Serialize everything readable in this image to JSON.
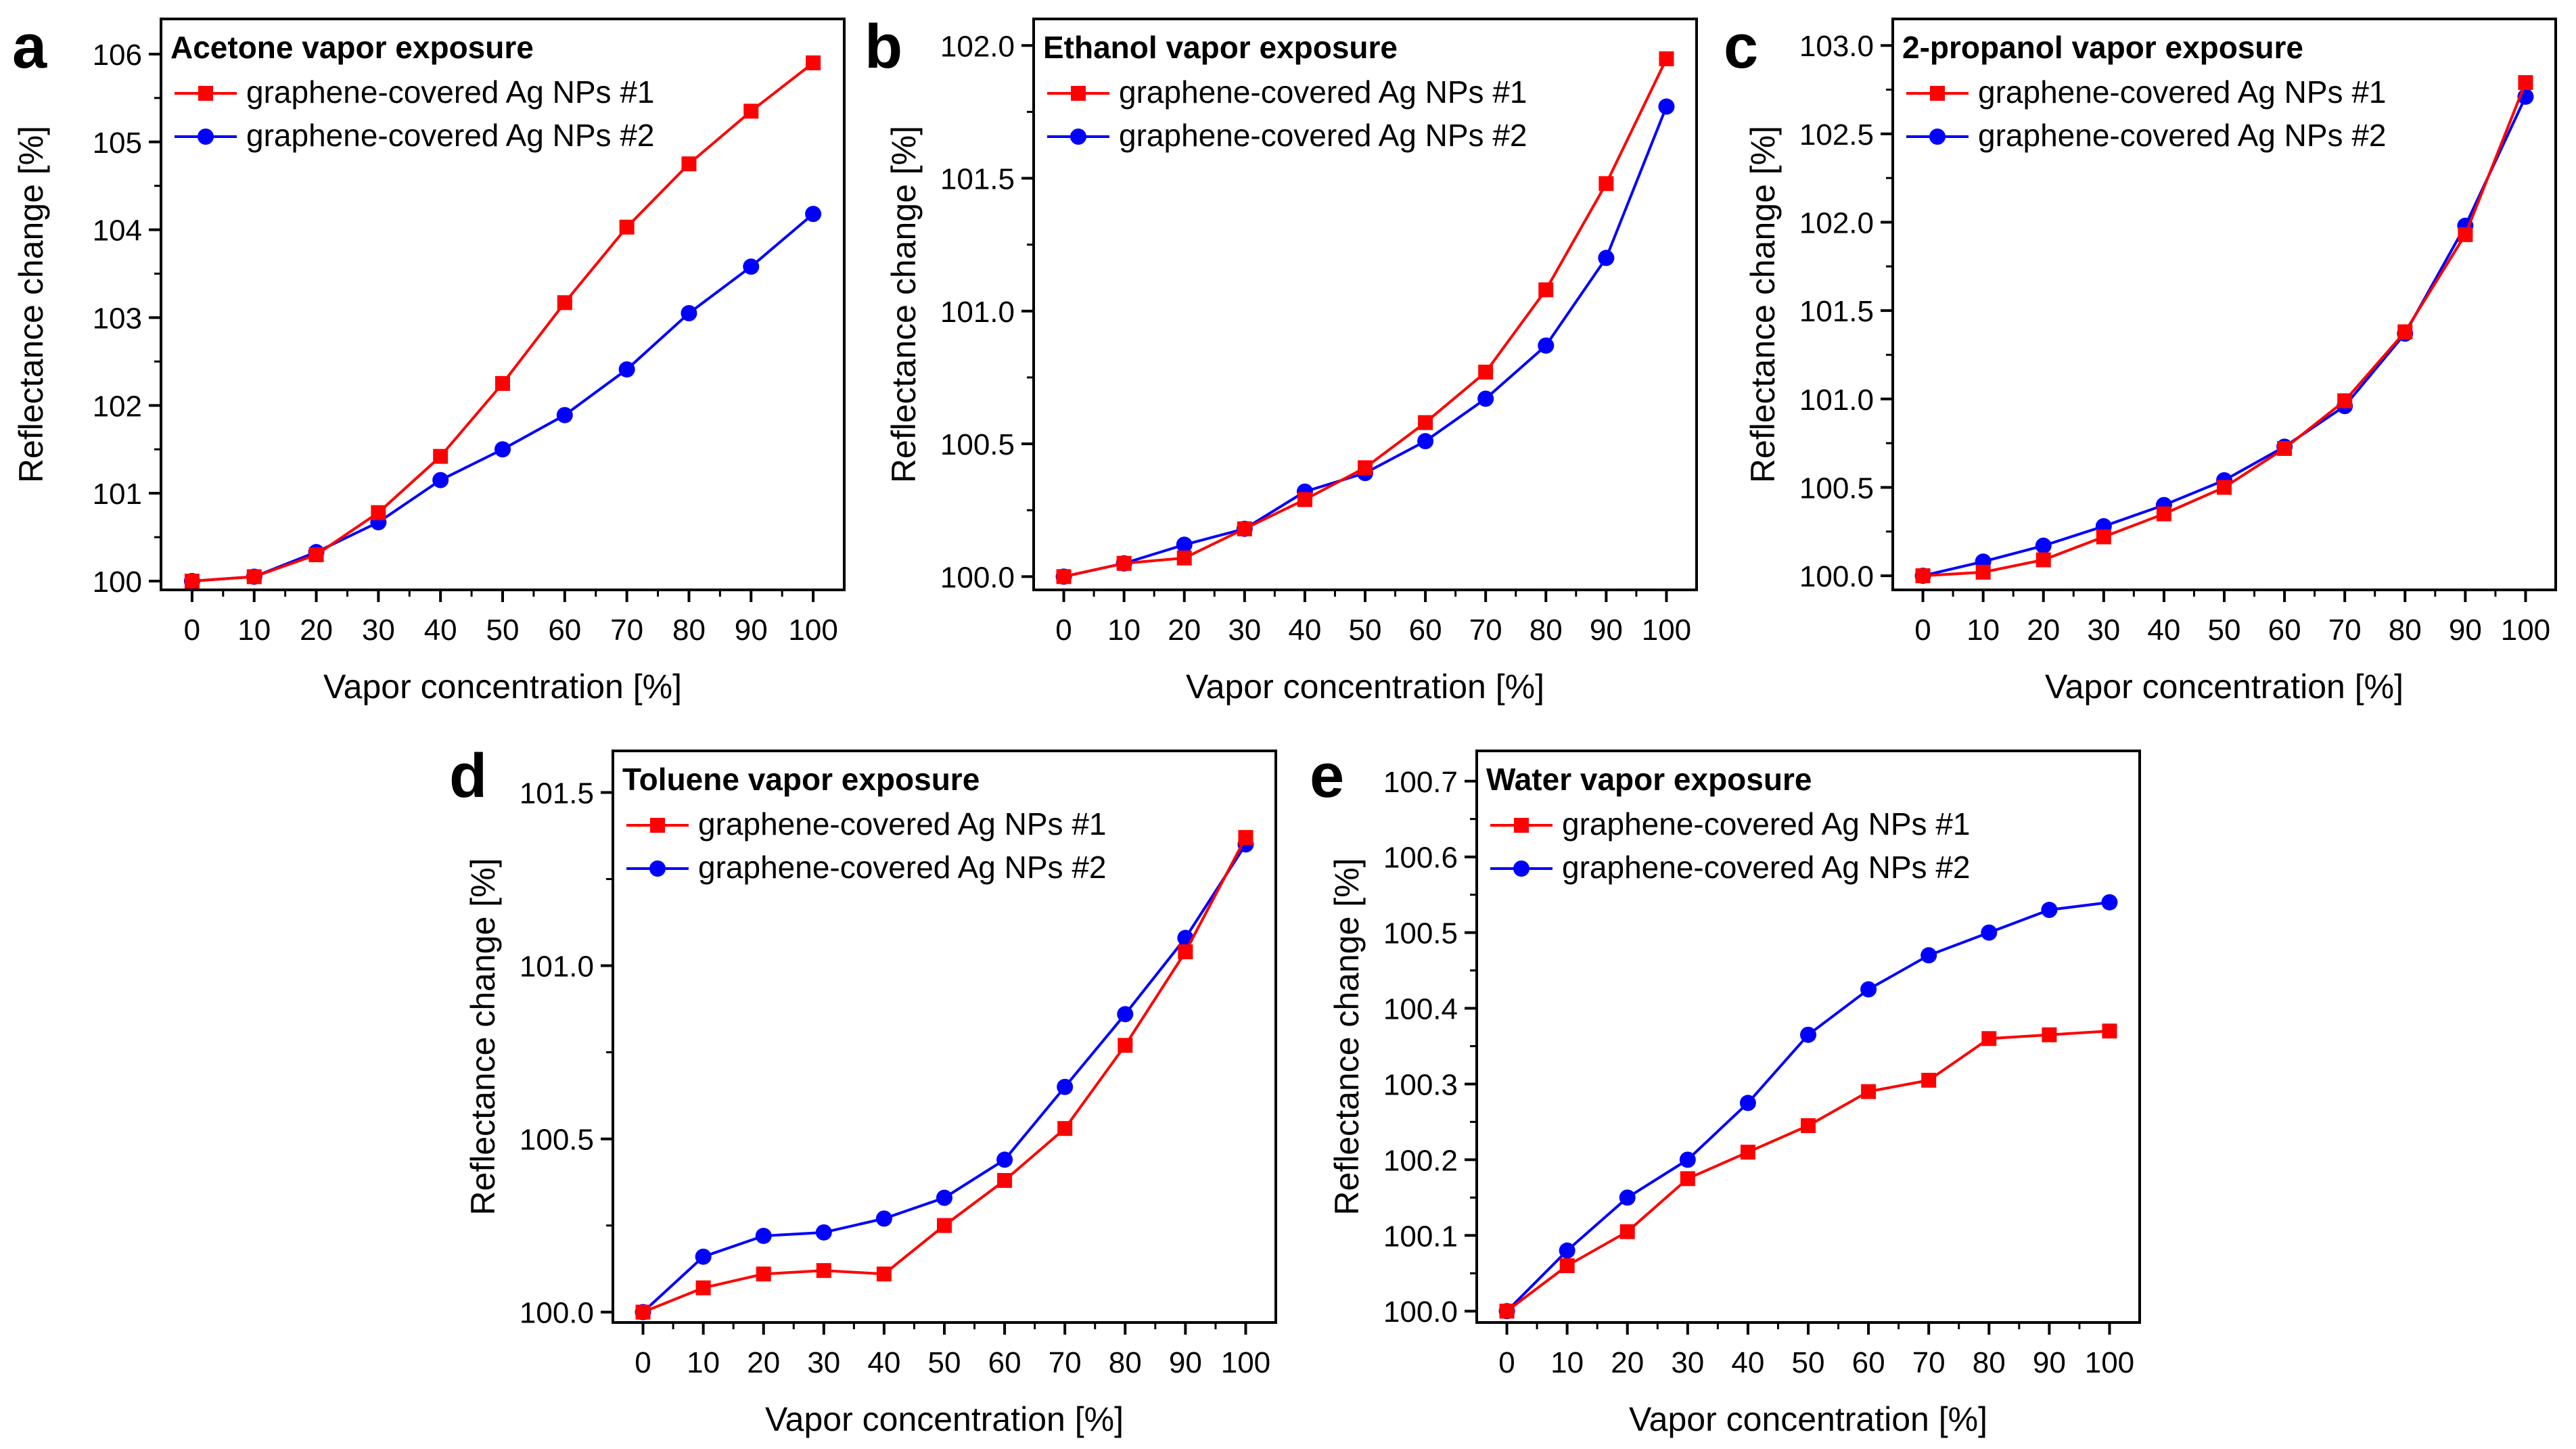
{
  "figure": {
    "legend_labels": [
      "graphene-covered Ag NPs #1",
      "graphene-covered Ag NPs #2"
    ],
    "series_colors": [
      "#ff0000",
      "#0000ff"
    ],
    "series_markers": [
      "square",
      "circle"
    ]
  },
  "chart_data": [
    {
      "panel": "a",
      "type": "line",
      "title": "Acetone vapor exposure",
      "xlabel": "Vapor concentration [%]",
      "ylabel": "Reflectance change [%]",
      "x": [
        0,
        10,
        20,
        30,
        40,
        50,
        60,
        70,
        80,
        90,
        100
      ],
      "xlim": [
        -5,
        105
      ],
      "ylim": [
        99.9,
        106.4
      ],
      "yticks": [
        100,
        101,
        102,
        103,
        104,
        105,
        106
      ],
      "ytick_labels": [
        "100",
        "101",
        "102",
        "103",
        "104",
        "105",
        "106"
      ],
      "xticks": [
        0,
        10,
        20,
        30,
        40,
        50,
        60,
        70,
        80,
        90,
        100
      ],
      "xtick_labels": [
        "0",
        "10",
        "20",
        "30",
        "40",
        "50",
        "60",
        "70",
        "80",
        "90",
        "100"
      ],
      "series": [
        {
          "name": "graphene-covered Ag NPs #1",
          "values": [
            100.0,
            100.05,
            100.3,
            100.78,
            101.42,
            102.25,
            103.17,
            104.03,
            104.75,
            105.35,
            105.9
          ]
        },
        {
          "name": "graphene-covered Ag NPs #2",
          "values": [
            100.0,
            100.05,
            100.33,
            100.67,
            101.15,
            101.5,
            101.89,
            102.41,
            103.05,
            103.58,
            104.18
          ]
        }
      ]
    },
    {
      "panel": "b",
      "type": "line",
      "title": "Ethanol vapor exposure",
      "xlabel": "Vapor concentration [%]",
      "ylabel": "Reflectance change [%]",
      "x": [
        0,
        10,
        20,
        30,
        40,
        50,
        60,
        70,
        80,
        90,
        100
      ],
      "xlim": [
        -5,
        105
      ],
      "ylim": [
        99.95,
        102.1
      ],
      "yticks": [
        100.0,
        100.5,
        101.0,
        101.5,
        102.0
      ],
      "ytick_labels": [
        "100.0",
        "100.5",
        "101.0",
        "101.5",
        "102.0"
      ],
      "xticks": [
        0,
        10,
        20,
        30,
        40,
        50,
        60,
        70,
        80,
        90,
        100
      ],
      "xtick_labels": [
        "0",
        "10",
        "20",
        "30",
        "40",
        "50",
        "60",
        "70",
        "80",
        "90",
        "100"
      ],
      "series": [
        {
          "name": "graphene-covered Ag NPs #1",
          "values": [
            100.0,
            100.05,
            100.07,
            100.18,
            100.29,
            100.41,
            100.58,
            100.77,
            101.08,
            101.48,
            101.95
          ]
        },
        {
          "name": "graphene-covered Ag NPs #2",
          "values": [
            100.0,
            100.05,
            100.12,
            100.18,
            100.32,
            100.39,
            100.51,
            100.67,
            100.87,
            101.2,
            101.77
          ]
        }
      ]
    },
    {
      "panel": "c",
      "type": "line",
      "title": "2-propanol vapor exposure",
      "xlabel": "Vapor concentration [%]",
      "ylabel": "Reflectance change [%]",
      "x": [
        0,
        10,
        20,
        30,
        40,
        50,
        60,
        70,
        80,
        90,
        100
      ],
      "xlim": [
        -5,
        105
      ],
      "ylim": [
        99.92,
        103.15
      ],
      "yticks": [
        100.0,
        100.5,
        101.0,
        101.5,
        102.0,
        102.5,
        103.0
      ],
      "ytick_labels": [
        "100.0",
        "100.5",
        "101.0",
        "101.5",
        "102.0",
        "102.5",
        "103.0"
      ],
      "xticks": [
        0,
        10,
        20,
        30,
        40,
        50,
        60,
        70,
        80,
        90,
        100
      ],
      "xtick_labels": [
        "0",
        "10",
        "20",
        "30",
        "40",
        "50",
        "60",
        "70",
        "80",
        "90",
        "100"
      ],
      "series": [
        {
          "name": "graphene-covered Ag NPs #1",
          "values": [
            100.0,
            100.02,
            100.09,
            100.22,
            100.35,
            100.5,
            100.72,
            100.99,
            101.38,
            101.93,
            102.79
          ]
        },
        {
          "name": "graphene-covered Ag NPs #2",
          "values": [
            100.0,
            100.08,
            100.17,
            100.28,
            100.4,
            100.54,
            100.73,
            100.96,
            101.37,
            101.98,
            102.71
          ]
        }
      ]
    },
    {
      "panel": "d",
      "type": "line",
      "title": "Toluene vapor exposure",
      "xlabel": "Vapor concentration [%]",
      "ylabel": "Reflectance change [%]",
      "x": [
        0,
        10,
        20,
        30,
        40,
        50,
        60,
        70,
        80,
        90,
        100
      ],
      "xlim": [
        -5,
        105
      ],
      "ylim": [
        99.97,
        101.62
      ],
      "yticks": [
        100.0,
        100.5,
        101.0,
        101.5
      ],
      "ytick_labels": [
        "100.0",
        "100.5",
        "101.0",
        "101.5"
      ],
      "xticks": [
        0,
        10,
        20,
        30,
        40,
        50,
        60,
        70,
        80,
        90,
        100
      ],
      "xtick_labels": [
        "0",
        "10",
        "20",
        "30",
        "40",
        "50",
        "60",
        "70",
        "80",
        "90",
        "100"
      ],
      "series": [
        {
          "name": "graphene-covered Ag NPs #1",
          "values": [
            100.0,
            100.07,
            100.11,
            100.12,
            100.11,
            100.25,
            100.38,
            100.53,
            100.77,
            101.04,
            101.37
          ]
        },
        {
          "name": "graphene-covered Ag NPs #2",
          "values": [
            100.0,
            100.16,
            100.22,
            100.23,
            100.27,
            100.33,
            100.44,
            100.65,
            100.86,
            101.08,
            101.35
          ]
        }
      ]
    },
    {
      "panel": "e",
      "type": "line",
      "title": "Water vapor exposure",
      "xlabel": "Vapor concentration [%]",
      "ylabel": "Reflectance change [%]",
      "x": [
        0,
        10,
        20,
        30,
        40,
        50,
        60,
        70,
        80,
        90,
        100
      ],
      "xlim": [
        -5,
        105
      ],
      "ylim": [
        99.985,
        100.74
      ],
      "yticks": [
        100.0,
        100.1,
        100.2,
        100.3,
        100.4,
        100.5,
        100.6,
        100.7
      ],
      "ytick_labels": [
        "100.0",
        "100.1",
        "100.2",
        "100.3",
        "100.4",
        "100.5",
        "100.6",
        "100.7"
      ],
      "xticks": [
        0,
        10,
        20,
        30,
        40,
        50,
        60,
        70,
        80,
        90,
        100
      ],
      "xtick_labels": [
        "0",
        "10",
        "20",
        "30",
        "40",
        "50",
        "60",
        "70",
        "80",
        "90",
        "100"
      ],
      "series": [
        {
          "name": "graphene-covered Ag NPs #1",
          "values": [
            100.0,
            100.06,
            100.105,
            100.175,
            100.21,
            100.245,
            100.29,
            100.305,
            100.36,
            100.365,
            100.37
          ]
        },
        {
          "name": "graphene-covered Ag NPs #2",
          "values": [
            100.0,
            100.08,
            100.15,
            100.2,
            100.275,
            100.365,
            100.425,
            100.47,
            100.5,
            100.53,
            100.54
          ]
        }
      ]
    }
  ]
}
